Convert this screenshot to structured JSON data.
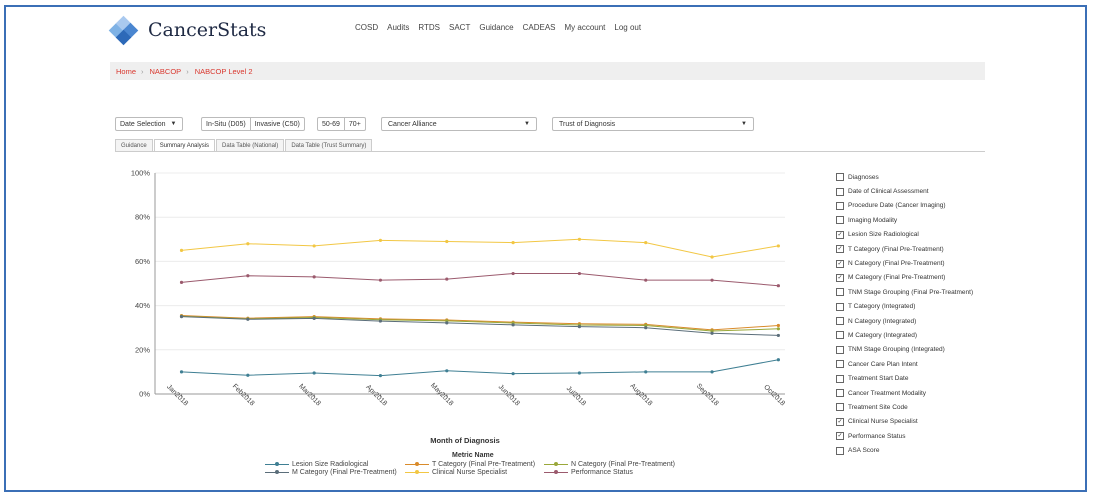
{
  "brand": {
    "name": "CancerStats"
  },
  "nav": [
    "COSD",
    "Audits",
    "RTDS",
    "SACT",
    "Guidance",
    "CADEAS",
    "My account",
    "Log out"
  ],
  "breadcrumb": [
    "Home",
    "NABCOP",
    "NABCOP Level 2"
  ],
  "filters": {
    "date_selection": "Date Selection",
    "site": [
      "In-Situ (D05)",
      "Invasive (C50)"
    ],
    "age": [
      "50-69",
      "70+"
    ],
    "cancer_alliance": "Cancer Alliance",
    "trust": "Trust of Diagnosis"
  },
  "tabs": [
    "Guidance",
    "Summary Analysis",
    "Data Table (National)",
    "Data Table (Trust Summary)"
  ],
  "active_tab": "Summary Analysis",
  "metrics": [
    {
      "label": "Diagnoses",
      "checked": false
    },
    {
      "label": "Date of Clinical Assessment",
      "checked": false
    },
    {
      "label": "Procedure Date (Cancer Imaging)",
      "checked": false
    },
    {
      "label": "Imaging Modality",
      "checked": false
    },
    {
      "label": "Lesion Size Radiological",
      "checked": true
    },
    {
      "label": "T Category (Final Pre-Treatment)",
      "checked": true
    },
    {
      "label": "N Category (Final Pre-Treatment)",
      "checked": true
    },
    {
      "label": "M Category (Final Pre-Treatment)",
      "checked": true
    },
    {
      "label": "TNM Stage Grouping (Final Pre-Treatment)",
      "checked": false
    },
    {
      "label": "T Category (Integrated)",
      "checked": false
    },
    {
      "label": "N Category (Integrated)",
      "checked": false
    },
    {
      "label": "M Category (Integrated)",
      "checked": false
    },
    {
      "label": "TNM Stage Grouping (Integrated)",
      "checked": false
    },
    {
      "label": "Cancer Care Plan Intent",
      "checked": false
    },
    {
      "label": "Treatment Start Date",
      "checked": false
    },
    {
      "label": "Cancer Treatment Modality",
      "checked": false
    },
    {
      "label": "Treatment Site Code",
      "checked": false
    },
    {
      "label": "Clinical Nurse Specialist",
      "checked": true
    },
    {
      "label": "Performance Status",
      "checked": true
    },
    {
      "label": "ASA Score",
      "checked": false
    }
  ],
  "chart_data": {
    "type": "line",
    "x": [
      "Jan2018",
      "Feb2018",
      "Mar2018",
      "Apr2018",
      "May2018",
      "Jun2018",
      "Jul2018",
      "Aug2018",
      "Sep2018",
      "Oct2018"
    ],
    "xlabel": "Month of Diagnosis",
    "ylabel": "",
    "yticks": [
      "0%",
      "20%",
      "40%",
      "60%",
      "80%",
      "100%"
    ],
    "ylim": [
      0,
      100
    ],
    "grid": true,
    "legend_title": "Metric Name",
    "legend_position": "bottom",
    "series": [
      {
        "name": "Lesion Size Radiological",
        "color": "#3f7f93",
        "values": [
          10,
          8.5,
          9.5,
          8.3,
          10.5,
          9.2,
          9.5,
          10,
          10,
          15.5
        ]
      },
      {
        "name": "T Category (Final Pre-Treatment)",
        "color": "#d98b2b",
        "values": [
          35.5,
          34.3,
          35,
          34,
          33.5,
          32.5,
          31.8,
          31.5,
          29,
          31
        ]
      },
      {
        "name": "N Category (Final Pre-Treatment)",
        "color": "#9aa83a",
        "values": [
          35.2,
          34,
          34.6,
          33.6,
          33.1,
          32.1,
          31.2,
          31,
          28.5,
          29.5
        ]
      },
      {
        "name": "M Category (Final Pre-Treatment)",
        "color": "#5b6e7a",
        "values": [
          35,
          33.8,
          34.2,
          33,
          32.2,
          31.3,
          30.5,
          30,
          27.5,
          26.5
        ]
      },
      {
        "name": "Clinical Nurse Specialist",
        "color": "#f2c744",
        "values": [
          65,
          68,
          67,
          69.5,
          69,
          68.5,
          70,
          68.5,
          62,
          67
        ]
      },
      {
        "name": "Performance Status",
        "color": "#9b5a6d",
        "values": [
          50.5,
          53.5,
          53,
          51.5,
          52,
          54.5,
          54.5,
          51.5,
          51.5,
          49
        ]
      }
    ]
  }
}
